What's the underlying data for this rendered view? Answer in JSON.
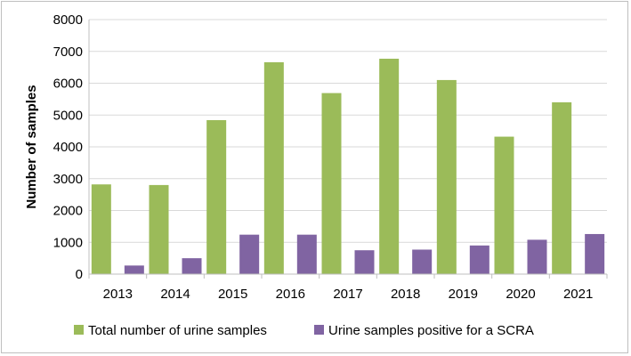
{
  "chart_data": {
    "type": "bar",
    "title": "",
    "xlabel": "",
    "ylabel": "Number of samples",
    "categories": [
      "2013",
      "2014",
      "2015",
      "2016",
      "2017",
      "2018",
      "2019",
      "2020",
      "2021"
    ],
    "series": [
      {
        "name": "Total number of urine samples",
        "color": "#9bbb59",
        "values": [
          2820,
          2800,
          4840,
          6660,
          5690,
          6770,
          6100,
          4320,
          5400
        ]
      },
      {
        "name": "Urine samples positive for a SCRA",
        "color": "#8064a2",
        "values": [
          270,
          500,
          1240,
          1240,
          750,
          770,
          900,
          1080,
          1260
        ]
      }
    ],
    "ylim": [
      0,
      8000
    ],
    "yticks": [
      "0",
      "1000",
      "2000",
      "3000",
      "4000",
      "5000",
      "6000",
      "7000",
      "8000"
    ],
    "grid": true,
    "legend": "bottom"
  }
}
